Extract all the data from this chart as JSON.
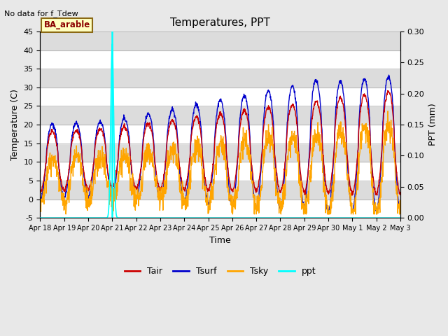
{
  "title": "Temperatures, PPT",
  "subtitle": "No data for f_Tdew",
  "annotation": "BA_arable",
  "xlabel": "Time",
  "ylabel_left": "Temperature (C)",
  "ylabel_right": "PPT (mm)",
  "ylim_left": [
    -5,
    45
  ],
  "ylim_right": [
    0.0,
    0.3
  ],
  "yticks_left": [
    -5,
    0,
    5,
    10,
    15,
    20,
    25,
    30,
    35,
    40,
    45
  ],
  "yticks_right": [
    0.0,
    0.05,
    0.1,
    0.15,
    0.2,
    0.25,
    0.3
  ],
  "vline_x": 3.0,
  "vline_color": "#00FFFF",
  "bg_color": "#E8E8E8",
  "plot_bg_color": "#DCDCDC",
  "tair_color": "#CC0000",
  "tsurf_color": "#0000CC",
  "tsky_color": "#FFA500",
  "ppt_color": "#00FFFF",
  "xtick_positions": [
    0,
    1,
    2,
    3,
    4,
    5,
    6,
    7,
    8,
    9,
    10,
    11,
    12,
    13,
    14,
    15
  ],
  "xtick_labels": [
    "Apr 18",
    "Apr 19",
    "Apr 20",
    "Apr 21",
    "Apr 22",
    "Apr 23",
    "Apr 24",
    "Apr 25",
    "Apr 26",
    "Apr 27",
    "Apr 28",
    "Apr 29",
    "Apr 30",
    "May 1",
    "May 2",
    "May 3"
  ]
}
